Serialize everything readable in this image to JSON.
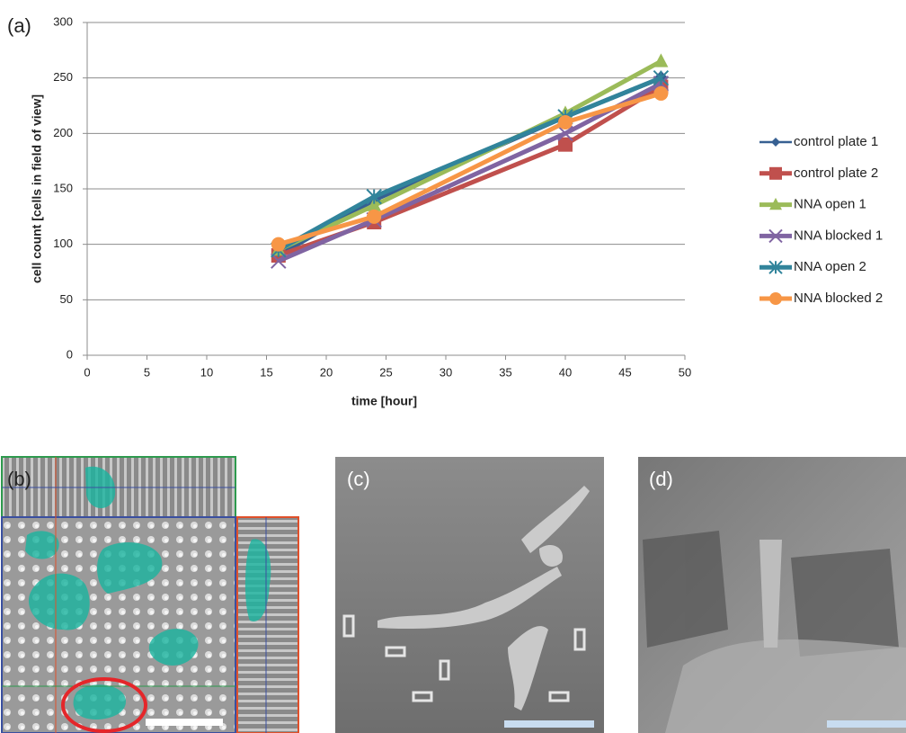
{
  "chart_data": {
    "type": "line",
    "x_label": "time [hour]",
    "y_label": "cell count [cells in field of view]",
    "x": [
      16,
      24,
      40,
      48
    ],
    "series": [
      {
        "name": "control plate 1",
        "color": "#376092",
        "marker": "diamond",
        "values": [
          90,
          140,
          215,
          250
        ]
      },
      {
        "name": "control plate 2",
        "color": "#c0504d",
        "marker": "square",
        "values": [
          90,
          120,
          190,
          242
        ]
      },
      {
        "name": "NNA open 1",
        "color": "#9bbb59",
        "marker": "triangle",
        "values": [
          95,
          135,
          218,
          265
        ]
      },
      {
        "name": "NNA blocked 1",
        "color": "#8064a2",
        "marker": "x",
        "values": [
          85,
          122,
          200,
          245
        ]
      },
      {
        "name": "NNA open 2",
        "color": "#31849b",
        "marker": "asterisk",
        "values": [
          95,
          143,
          215,
          250
        ]
      },
      {
        "name": "NNA blocked 2",
        "color": "#f79646",
        "marker": "circle",
        "values": [
          100,
          125,
          210,
          236
        ]
      }
    ],
    "xlim": [
      0,
      50
    ],
    "xticks": [
      0,
      5,
      10,
      15,
      20,
      25,
      30,
      35,
      40,
      45,
      50
    ],
    "ylim": [
      0,
      300
    ],
    "yticks": [
      0,
      50,
      100,
      150,
      200,
      250,
      300
    ],
    "grid": true,
    "legend": "right"
  },
  "panel_labels": {
    "a": "(a)",
    "b": "(b)",
    "c": "(c)",
    "d": "(d)"
  }
}
